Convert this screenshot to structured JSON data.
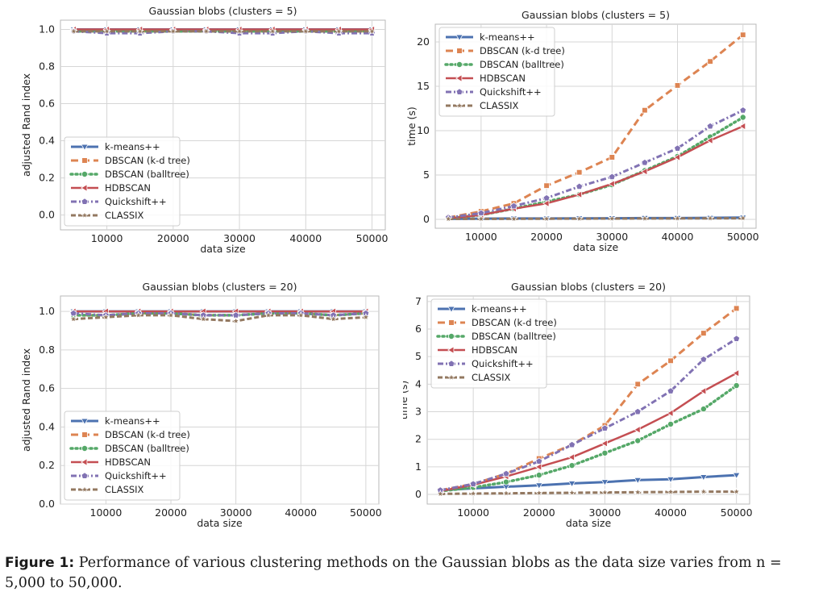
{
  "colors": {
    "k-means++": "#4c72b0",
    "DBSCAN (k-d tree)": "#dd8452",
    "DBSCAN (balltree)": "#55a868",
    "HDBSCAN": "#c44e52",
    "Quickshift++": "#8172b3",
    "CLASSIX": "#937860"
  },
  "caption": {
    "label": "Figure 1:",
    "text": "Performance of various clustering methods on the Gaussian blobs as the data size varies from n = 5,000 to 50,000."
  },
  "chart_data": [
    {
      "type": "line",
      "title": "Gaussian blobs (clusters = 5)",
      "xlabel": "data size",
      "ylabel": "adjusted Rand index",
      "xlim": [
        3000,
        52000
      ],
      "ylim": [
        -0.08,
        1.05
      ],
      "xticks": [
        10000,
        20000,
        30000,
        40000,
        50000
      ],
      "yticks": [
        0.0,
        0.2,
        0.4,
        0.6,
        0.8,
        1.0
      ],
      "ytick_labels": [
        "0.0",
        "0.2",
        "0.4",
        "0.6",
        "0.8",
        "1.0"
      ],
      "grid": true,
      "legend": "lower-left",
      "x": [
        5000,
        10000,
        15000,
        20000,
        25000,
        30000,
        35000,
        40000,
        45000,
        50000
      ],
      "series": [
        {
          "name": "k-means++",
          "values": [
            1.0,
            1.0,
            1.0,
            1.0,
            1.0,
            1.0,
            1.0,
            1.0,
            1.0,
            1.0
          ]
        },
        {
          "name": "DBSCAN (k-d tree)",
          "values": [
            0.99,
            0.99,
            0.99,
            0.99,
            0.99,
            0.99,
            0.99,
            0.99,
            0.99,
            0.99
          ]
        },
        {
          "name": "DBSCAN (balltree)",
          "values": [
            0.99,
            0.99,
            0.99,
            0.99,
            0.99,
            0.99,
            0.99,
            0.99,
            0.99,
            0.99
          ]
        },
        {
          "name": "HDBSCAN",
          "values": [
            1.0,
            1.0,
            1.0,
            1.0,
            1.0,
            1.0,
            1.0,
            1.0,
            1.0,
            1.0
          ]
        },
        {
          "name": "Quickshift++",
          "values": [
            0.99,
            0.98,
            0.98,
            0.99,
            0.99,
            0.98,
            0.98,
            0.99,
            0.98,
            0.98
          ]
        },
        {
          "name": "CLASSIX",
          "values": [
            0.99,
            0.99,
            0.99,
            0.99,
            0.99,
            0.99,
            0.99,
            0.99,
            0.99,
            0.99
          ]
        }
      ]
    },
    {
      "type": "line",
      "title": "Gaussian blobs (clusters = 5)",
      "xlabel": "data size",
      "ylabel": "time (s)",
      "xlim": [
        3000,
        52000
      ],
      "ylim": [
        -1,
        22
      ],
      "xticks": [
        10000,
        20000,
        30000,
        40000,
        50000
      ],
      "yticks": [
        0,
        5,
        10,
        15,
        20
      ],
      "ytick_labels": [
        "0",
        "5",
        "10",
        "15",
        "20"
      ],
      "grid": true,
      "legend": "upper-left",
      "x": [
        5000,
        10000,
        15000,
        20000,
        25000,
        30000,
        35000,
        40000,
        45000,
        50000
      ],
      "series": [
        {
          "name": "k-means++",
          "values": [
            0.05,
            0.08,
            0.1,
            0.1,
            0.12,
            0.13,
            0.15,
            0.15,
            0.17,
            0.2
          ]
        },
        {
          "name": "DBSCAN (k-d tree)",
          "values": [
            0.2,
            0.9,
            1.8,
            3.8,
            5.3,
            7.0,
            12.3,
            15.1,
            17.8,
            20.8
          ]
        },
        {
          "name": "DBSCAN (balltree)",
          "values": [
            0.1,
            0.5,
            1.2,
            2.0,
            2.8,
            3.9,
            5.5,
            7.1,
            9.3,
            11.5
          ]
        },
        {
          "name": "HDBSCAN",
          "values": [
            0.1,
            0.5,
            1.2,
            1.8,
            2.8,
            4.0,
            5.4,
            7.0,
            8.9,
            10.5
          ]
        },
        {
          "name": "Quickshift++",
          "values": [
            0.2,
            0.7,
            1.5,
            2.4,
            3.7,
            4.8,
            6.4,
            8.0,
            10.5,
            12.3
          ]
        },
        {
          "name": "CLASSIX",
          "values": [
            0.05,
            0.05,
            0.06,
            0.07,
            0.08,
            0.09,
            0.1,
            0.11,
            0.12,
            0.13
          ]
        }
      ]
    },
    {
      "type": "line",
      "title": "Gaussian blobs (clusters = 20)",
      "xlabel": "data size",
      "ylabel": "adjusted Rand index",
      "xlim": [
        3000,
        52000
      ],
      "ylim": [
        0.0,
        1.08
      ],
      "xticks": [
        10000,
        20000,
        30000,
        40000,
        50000
      ],
      "yticks": [
        0.0,
        0.2,
        0.4,
        0.6,
        0.8,
        1.0
      ],
      "ytick_labels": [
        "0.0",
        "0.2",
        "0.4",
        "0.6",
        "0.8",
        "1.0"
      ],
      "grid": true,
      "legend": "lower-left",
      "x": [
        5000,
        10000,
        15000,
        20000,
        25000,
        30000,
        35000,
        40000,
        45000,
        50000
      ],
      "series": [
        {
          "name": "k-means++",
          "values": [
            1.0,
            1.0,
            1.0,
            1.0,
            1.0,
            1.0,
            1.0,
            1.0,
            1.0,
            1.0
          ]
        },
        {
          "name": "DBSCAN (k-d tree)",
          "values": [
            0.98,
            0.98,
            0.99,
            0.99,
            0.98,
            0.98,
            0.99,
            0.99,
            0.98,
            0.99
          ]
        },
        {
          "name": "DBSCAN (balltree)",
          "values": [
            0.98,
            0.98,
            0.99,
            0.99,
            0.98,
            0.98,
            0.99,
            0.99,
            0.98,
            0.99
          ]
        },
        {
          "name": "HDBSCAN",
          "values": [
            1.0,
            1.0,
            1.0,
            1.0,
            1.0,
            1.0,
            1.0,
            1.0,
            1.0,
            1.0
          ]
        },
        {
          "name": "Quickshift++",
          "values": [
            0.99,
            0.98,
            0.99,
            0.99,
            0.98,
            0.98,
            0.99,
            0.99,
            0.98,
            0.99
          ]
        },
        {
          "name": "CLASSIX",
          "values": [
            0.96,
            0.97,
            0.98,
            0.98,
            0.96,
            0.95,
            0.98,
            0.98,
            0.96,
            0.97
          ]
        }
      ]
    },
    {
      "type": "line",
      "title": "Gaussian blobs (clusters = 20)",
      "xlabel": "data size",
      "ylabel": "time (s)",
      "xlim": [
        3000,
        52000
      ],
      "ylim": [
        -0.35,
        7.2
      ],
      "xticks": [
        10000,
        20000,
        30000,
        40000,
        50000
      ],
      "yticks": [
        0,
        1,
        2,
        3,
        4,
        5,
        6,
        7
      ],
      "ytick_labels": [
        "0",
        "1",
        "2",
        "3",
        "4",
        "5",
        "6",
        "7"
      ],
      "grid": true,
      "legend": "upper-left",
      "x": [
        5000,
        10000,
        15000,
        20000,
        25000,
        30000,
        35000,
        40000,
        45000,
        50000
      ],
      "series": [
        {
          "name": "k-means++",
          "values": [
            0.15,
            0.22,
            0.28,
            0.33,
            0.4,
            0.45,
            0.52,
            0.55,
            0.63,
            0.7
          ]
        },
        {
          "name": "DBSCAN (k-d tree)",
          "values": [
            0.15,
            0.38,
            0.75,
            1.3,
            1.8,
            2.5,
            4.0,
            4.85,
            5.85,
            6.75
          ]
        },
        {
          "name": "DBSCAN (balltree)",
          "values": [
            0.12,
            0.25,
            0.45,
            0.7,
            1.05,
            1.5,
            1.95,
            2.55,
            3.1,
            3.95
          ]
        },
        {
          "name": "HDBSCAN",
          "values": [
            0.12,
            0.35,
            0.65,
            1.0,
            1.35,
            1.85,
            2.35,
            2.95,
            3.75,
            4.4
          ]
        },
        {
          "name": "Quickshift++",
          "values": [
            0.15,
            0.38,
            0.75,
            1.2,
            1.8,
            2.4,
            3.0,
            3.75,
            4.9,
            5.65
          ]
        },
        {
          "name": "CLASSIX",
          "values": [
            0.02,
            0.03,
            0.04,
            0.05,
            0.06,
            0.07,
            0.08,
            0.09,
            0.1,
            0.1
          ]
        }
      ]
    }
  ]
}
